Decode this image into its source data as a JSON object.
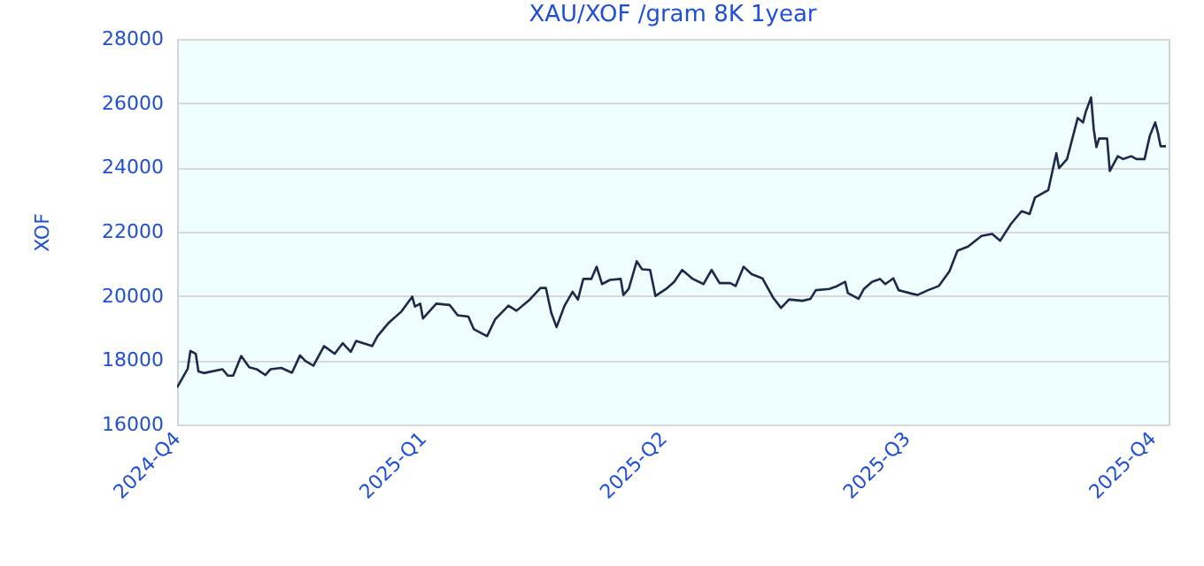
{
  "chart_data": {
    "type": "line",
    "title": "XAU/XOF /gram 8K 1year",
    "ylabel": "XOF",
    "color": "#1b2a4b",
    "grid": "y",
    "xlim": [
      "2024-10-01",
      "2025-10-07"
    ],
    "ylim": [
      16000,
      28000
    ],
    "xticks": [
      {
        "value": "2024-10-01",
        "label": "2024-Q4"
      },
      {
        "value": "2025-01-01",
        "label": "2025-Q1"
      },
      {
        "value": "2025-04-01",
        "label": "2025-Q2"
      },
      {
        "value": "2025-07-01",
        "label": "2025-Q3"
      },
      {
        "value": "2025-10-01",
        "label": "2025-Q4"
      }
    ],
    "yticks": [
      16000,
      18000,
      20000,
      22000,
      24000,
      26000,
      28000
    ],
    "x": [
      "2024-10-01",
      "2024-10-05",
      "2024-10-06",
      "2024-10-08",
      "2024-10-09",
      "2024-10-11",
      "2024-10-18",
      "2024-10-20",
      "2024-10-22",
      "2024-10-25",
      "2024-10-28",
      "2024-10-31",
      "2024-11-03",
      "2024-11-05",
      "2024-11-09",
      "2024-11-13",
      "2024-11-16",
      "2024-11-18",
      "2024-11-21",
      "2024-11-25",
      "2024-11-29",
      "2024-12-02",
      "2024-12-05",
      "2024-12-07",
      "2024-12-13",
      "2024-12-15",
      "2024-12-19",
      "2024-12-24",
      "2024-12-28",
      "2024-12-29",
      "2024-12-31",
      "2025-01-01",
      "2025-01-06",
      "2025-01-11",
      "2025-01-14",
      "2025-01-18",
      "2025-01-20",
      "2025-01-22",
      "2025-01-25",
      "2025-01-28",
      "2025-02-02",
      "2025-02-05",
      "2025-02-10",
      "2025-02-14",
      "2025-02-16",
      "2025-02-18",
      "2025-02-20",
      "2025-02-23",
      "2025-02-26",
      "2025-02-28",
      "2025-03-02",
      "2025-03-05",
      "2025-03-07",
      "2025-03-09",
      "2025-03-12",
      "2025-03-16",
      "2025-03-17",
      "2025-03-19",
      "2025-03-22",
      "2025-03-24",
      "2025-03-27",
      "2025-03-29",
      "2025-04-02",
      "2025-04-05",
      "2025-04-08",
      "2025-04-12",
      "2025-04-16",
      "2025-04-19",
      "2025-04-22",
      "2025-04-26",
      "2025-04-28",
      "2025-05-01",
      "2025-05-04",
      "2025-05-08",
      "2025-05-12",
      "2025-05-15",
      "2025-05-18",
      "2025-05-23",
      "2025-05-26",
      "2025-05-28",
      "2025-06-02",
      "2025-06-05",
      "2025-06-08",
      "2025-06-09",
      "2025-06-13",
      "2025-06-15",
      "2025-06-18",
      "2025-06-21",
      "2025-06-23",
      "2025-06-26",
      "2025-06-28",
      "2025-07-03",
      "2025-07-05",
      "2025-07-09",
      "2025-07-13",
      "2025-07-17",
      "2025-07-20",
      "2025-07-24",
      "2025-07-29",
      "2025-08-02",
      "2025-08-05",
      "2025-08-09",
      "2025-08-13",
      "2025-08-16",
      "2025-08-18",
      "2025-08-23",
      "2025-08-26",
      "2025-08-27",
      "2025-08-30",
      "2025-09-01",
      "2025-09-03",
      "2025-09-05",
      "2025-09-06",
      "2025-09-08",
      "2025-09-09",
      "2025-09-10",
      "2025-09-11",
      "2025-09-14",
      "2025-09-15",
      "2025-09-18",
      "2025-09-20",
      "2025-09-23",
      "2025-09-25",
      "2025-09-28",
      "2025-09-30",
      "2025-10-02",
      "2025-10-03",
      "2025-10-04",
      "2025-10-06"
    ],
    "values": [
      17150,
      17740,
      18290,
      18200,
      17650,
      17600,
      17720,
      17520,
      17520,
      18130,
      17780,
      17710,
      17540,
      17720,
      17760,
      17610,
      18150,
      17980,
      17830,
      18440,
      18200,
      18530,
      18260,
      18600,
      18440,
      18750,
      19150,
      19520,
      19980,
      19670,
      19760,
      19300,
      19760,
      19720,
      19400,
      19360,
      18970,
      18880,
      18750,
      19270,
      19700,
      19540,
      19890,
      20250,
      20250,
      19480,
      19030,
      19700,
      20130,
      19890,
      20530,
      20530,
      20910,
      20370,
      20500,
      20530,
      20030,
      20220,
      21080,
      20830,
      20810,
      20000,
      20220,
      20440,
      20810,
      20530,
      20370,
      20810,
      20400,
      20400,
      20310,
      20910,
      20680,
      20550,
      19950,
      19630,
      19890,
      19850,
      19910,
      20180,
      20220,
      20310,
      20440,
      20090,
      19910,
      20220,
      20440,
      20530,
      20370,
      20550,
      20180,
      20070,
      20030,
      20180,
      20310,
      20770,
      21410,
      21540,
      21870,
      21930,
      21720,
      22240,
      22640,
      22550,
      23060,
      23300,
      24440,
      23980,
      24260,
      24900,
      25540,
      25400,
      25730,
      26180,
      25180,
      24630,
      24900,
      24900,
      23890,
      24350,
      24260,
      24350,
      24260,
      24260,
      24990,
      25400,
      25080,
      24660,
      24660
    ]
  }
}
